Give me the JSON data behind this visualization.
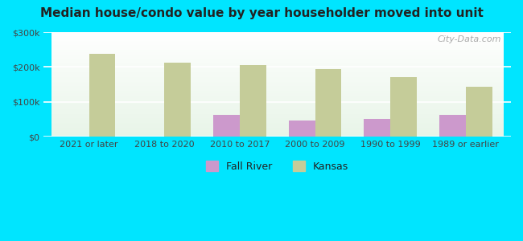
{
  "title": "Median house/condo value by year householder moved into unit",
  "categories": [
    "2021 or later",
    "2018 to 2020",
    "2010 to 2017",
    "2000 to 2009",
    "1990 to 1999",
    "1989 or earlier"
  ],
  "fall_river_values": [
    0,
    0,
    62000,
    47000,
    52000,
    62000
  ],
  "kansas_values": [
    238000,
    212000,
    205000,
    194000,
    172000,
    143000
  ],
  "fall_river_color": "#cc99cc",
  "kansas_color": "#c5cc99",
  "background_outer": "#00e5ff",
  "background_inner_top": "#e8f5e8",
  "background_inner_bottom": "#ffffff",
  "ylim": [
    0,
    300000
  ],
  "yticks": [
    0,
    100000,
    200000,
    300000
  ],
  "ytick_labels": [
    "$0",
    "$100k",
    "$200k",
    "$300k"
  ],
  "bar_width": 0.35,
  "watermark": "City-Data.com",
  "legend_labels": [
    "Fall River",
    "Kansas"
  ]
}
